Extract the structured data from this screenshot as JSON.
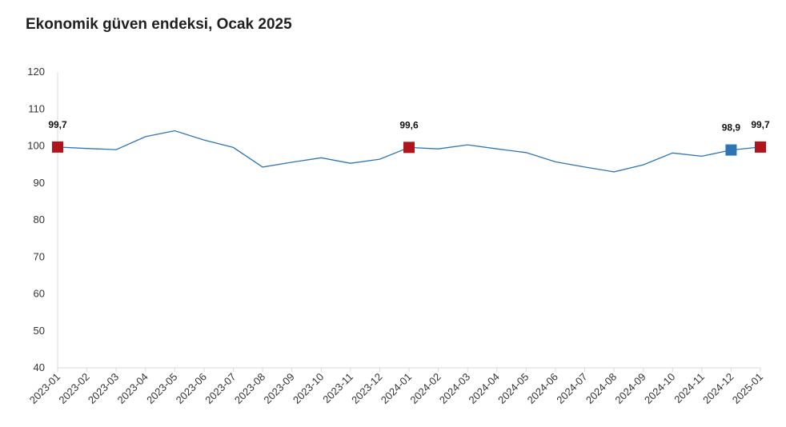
{
  "title": "Ekonomik güven endeksi, Ocak 2025",
  "colors": {
    "line": "#2e75b6",
    "marker_red": "#b0151c",
    "marker_blue": "#2e75b6",
    "axis": "#d9d9d9"
  },
  "chart_data": {
    "type": "line",
    "title": "Ekonomik güven endeksi, Ocak 2025",
    "xlabel": "",
    "ylabel": "",
    "ylim": [
      40,
      120
    ],
    "yticks": [
      40,
      50,
      60,
      70,
      80,
      90,
      100,
      110,
      120
    ],
    "grid": false,
    "categories": [
      "2023-01",
      "2023-02",
      "2023-03",
      "2023-04",
      "2023-05",
      "2023-06",
      "2023-07",
      "2023-08",
      "2023-09",
      "2023-10",
      "2023-11",
      "2023-12",
      "2024-01",
      "2024-02",
      "2024-03",
      "2024-04",
      "2024-05",
      "2024-06",
      "2024-07",
      "2024-08",
      "2024-09",
      "2024-10",
      "2024-11",
      "2024-12",
      "2025-01"
    ],
    "series": [
      {
        "values": [
          99.7,
          99.3,
          99.0,
          102.5,
          104.1,
          101.6,
          99.6,
          94.3,
          95.6,
          96.8,
          95.3,
          96.4,
          99.6,
          99.2,
          100.3,
          99.2,
          98.2,
          95.7,
          94.3,
          93.0,
          94.9,
          98.1,
          97.2,
          98.9,
          99.7
        ]
      }
    ],
    "highlighted_points": [
      {
        "index": 0,
        "label": "99,7",
        "color": "red"
      },
      {
        "index": 12,
        "label": "99,6",
        "color": "red"
      },
      {
        "index": 23,
        "label": "98,9",
        "color": "blue"
      },
      {
        "index": 24,
        "label": "99,7",
        "color": "red"
      }
    ]
  }
}
